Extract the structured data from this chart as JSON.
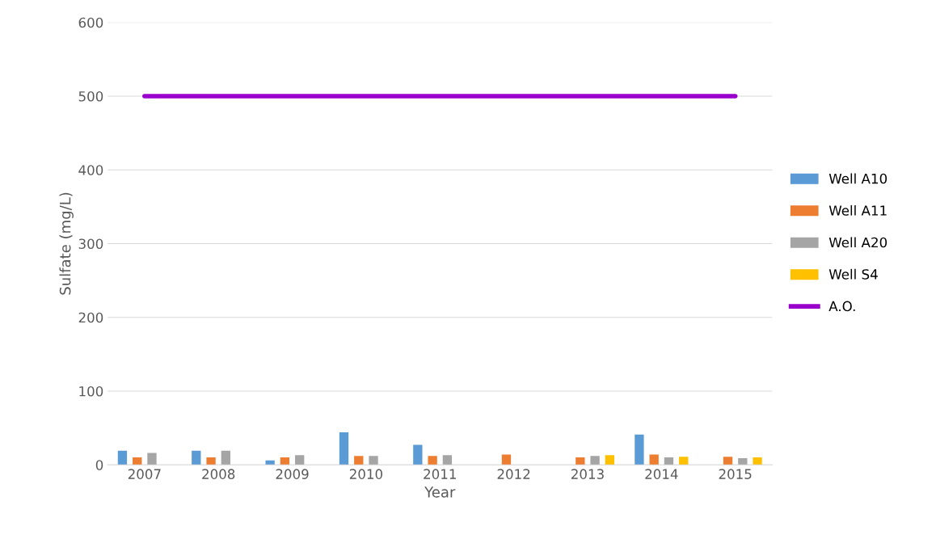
{
  "chart_data": {
    "type": "bar",
    "xlabel": "Year",
    "ylabel": "Sulfate (mg/L)",
    "categories": [
      "2007",
      "2008",
      "2009",
      "2010",
      "2011",
      "2012",
      "2013",
      "2014",
      "2015"
    ],
    "series": [
      {
        "name": "Well A10",
        "color": "#5b9bd5",
        "values": [
          19,
          19,
          6,
          44,
          27,
          null,
          null,
          41,
          null
        ]
      },
      {
        "name": "Well A11",
        "color": "#ed7d31",
        "values": [
          10,
          10,
          10,
          12,
          12,
          14,
          10,
          14,
          11
        ]
      },
      {
        "name": "Well A20",
        "color": "#a5a5a5",
        "values": [
          16,
          19,
          13,
          12,
          13,
          null,
          12,
          10,
          9
        ]
      },
      {
        "name": "Well S4",
        "color": "#ffc000",
        "values": [
          null,
          null,
          null,
          null,
          null,
          null,
          13,
          11,
          10
        ]
      },
      {
        "name": "A.O.",
        "type": "line",
        "color": "#9900cc",
        "values": [
          500,
          500,
          500,
          500,
          500,
          500,
          500,
          500,
          500
        ]
      }
    ],
    "ylim": [
      0,
      600
    ],
    "yticks": [
      0,
      100,
      200,
      300,
      400,
      500,
      600
    ],
    "grid": "y",
    "legend": "right"
  }
}
